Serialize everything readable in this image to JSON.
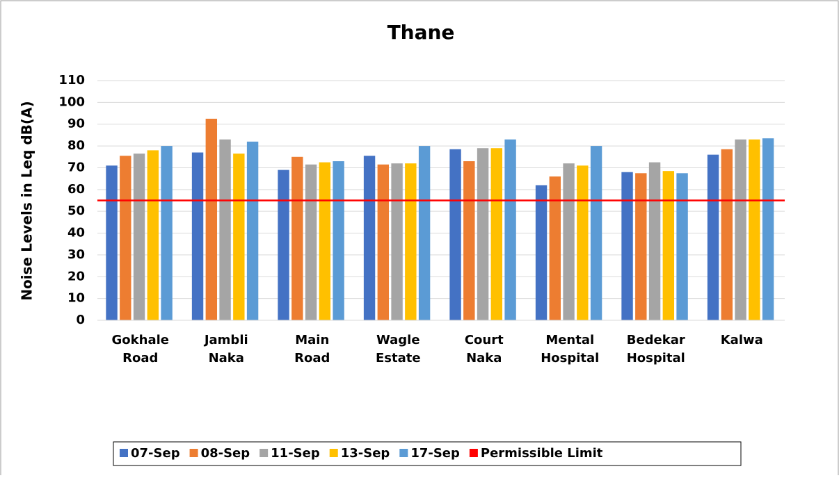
{
  "chart_data": {
    "type": "bar",
    "title": "Thane",
    "y_label": "Noise Levels in Leq dB(A)",
    "categories": [
      "Gokhale Road",
      "Jambli Naka",
      "Main Road",
      "Wagle Estate",
      "Court Naka",
      "Mental Hospital",
      "Bedekar Hospital",
      "Kalwa"
    ],
    "series": [
      {
        "name": "07-Sep",
        "color": "#4472c4",
        "values": [
          71,
          77,
          69,
          75.5,
          78.5,
          62,
          68,
          76
        ]
      },
      {
        "name": "08-Sep",
        "color": "#ed7d31",
        "values": [
          75.5,
          92.5,
          75,
          71.5,
          73,
          66,
          67.5,
          78.5
        ]
      },
      {
        "name": "11-Sep",
        "color": "#a5a5a5",
        "values": [
          76.5,
          83,
          71.5,
          72,
          79,
          72,
          72.5,
          83
        ]
      },
      {
        "name": "13-Sep",
        "color": "#ffc000",
        "values": [
          78,
          76.5,
          72.5,
          72,
          79,
          71,
          68.5,
          83
        ]
      },
      {
        "name": "17-Sep",
        "color": "#5b9bd5",
        "values": [
          80,
          82,
          73,
          80,
          83,
          80,
          67.5,
          83.5
        ]
      }
    ],
    "reference_line": {
      "name": "Permissible Limit",
      "value": 55,
      "color": "#ff0000"
    },
    "ylim": [
      0,
      110
    ],
    "yticks": [
      0,
      10,
      20,
      30,
      40,
      50,
      60,
      70,
      80,
      90,
      100,
      110
    ],
    "grid": true,
    "legend": "bottom"
  }
}
